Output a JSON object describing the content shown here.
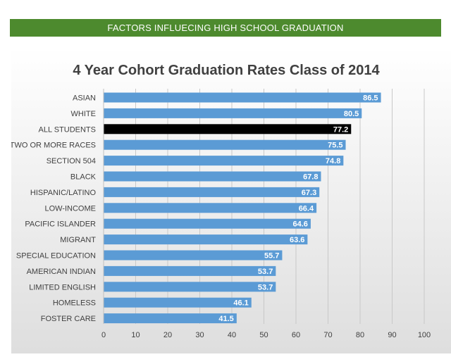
{
  "banner": {
    "title": "FACTORS INFLUECING HIGH SCHOOL GRADUATION"
  },
  "chart_data": {
    "type": "bar",
    "orientation": "horizontal",
    "title": "4 Year Cohort Graduation Rates Class of 2014",
    "xlabel": "",
    "ylabel": "",
    "xlim": [
      0,
      100
    ],
    "x_ticks": [
      0,
      10,
      20,
      30,
      40,
      50,
      60,
      70,
      80,
      90,
      100
    ],
    "grid": "vertical",
    "legend": "none",
    "categories": [
      "ASIAN",
      "WHITE",
      "ALL STUDENTS",
      "TWO OR MORE RACES",
      "SECTION 504",
      "BLACK",
      "HISPANIC/LATINO",
      "LOW-INCOME",
      "PACIFIC ISLANDER",
      "MIGRANT",
      "SPECIAL EDUCATION",
      "AMERICAN INDIAN",
      "LIMITED ENGLISH",
      "HOMELESS",
      "FOSTER CARE"
    ],
    "values": [
      86.5,
      80.5,
      77.2,
      75.5,
      74.8,
      67.8,
      67.3,
      66.4,
      64.6,
      63.6,
      55.7,
      53.7,
      53.7,
      46.1,
      41.5
    ],
    "value_labels": [
      "86.5",
      "80.5",
      "77.2",
      "75.5",
      "74.8",
      "67.8",
      "67.3",
      "66.4",
      "64.6",
      "63.6",
      "55.7",
      "53.7",
      "53.7",
      "46.1",
      "41.5"
    ],
    "highlight_category": "ALL STUDENTS",
    "colors": {
      "bar": "#5b9bd5",
      "highlight_bar": "#000000",
      "value_label": "#ffffff",
      "grid": "#c8c8c8",
      "axis_text": "#404040",
      "title": "#404040",
      "banner": "#4d8a2e"
    }
  }
}
